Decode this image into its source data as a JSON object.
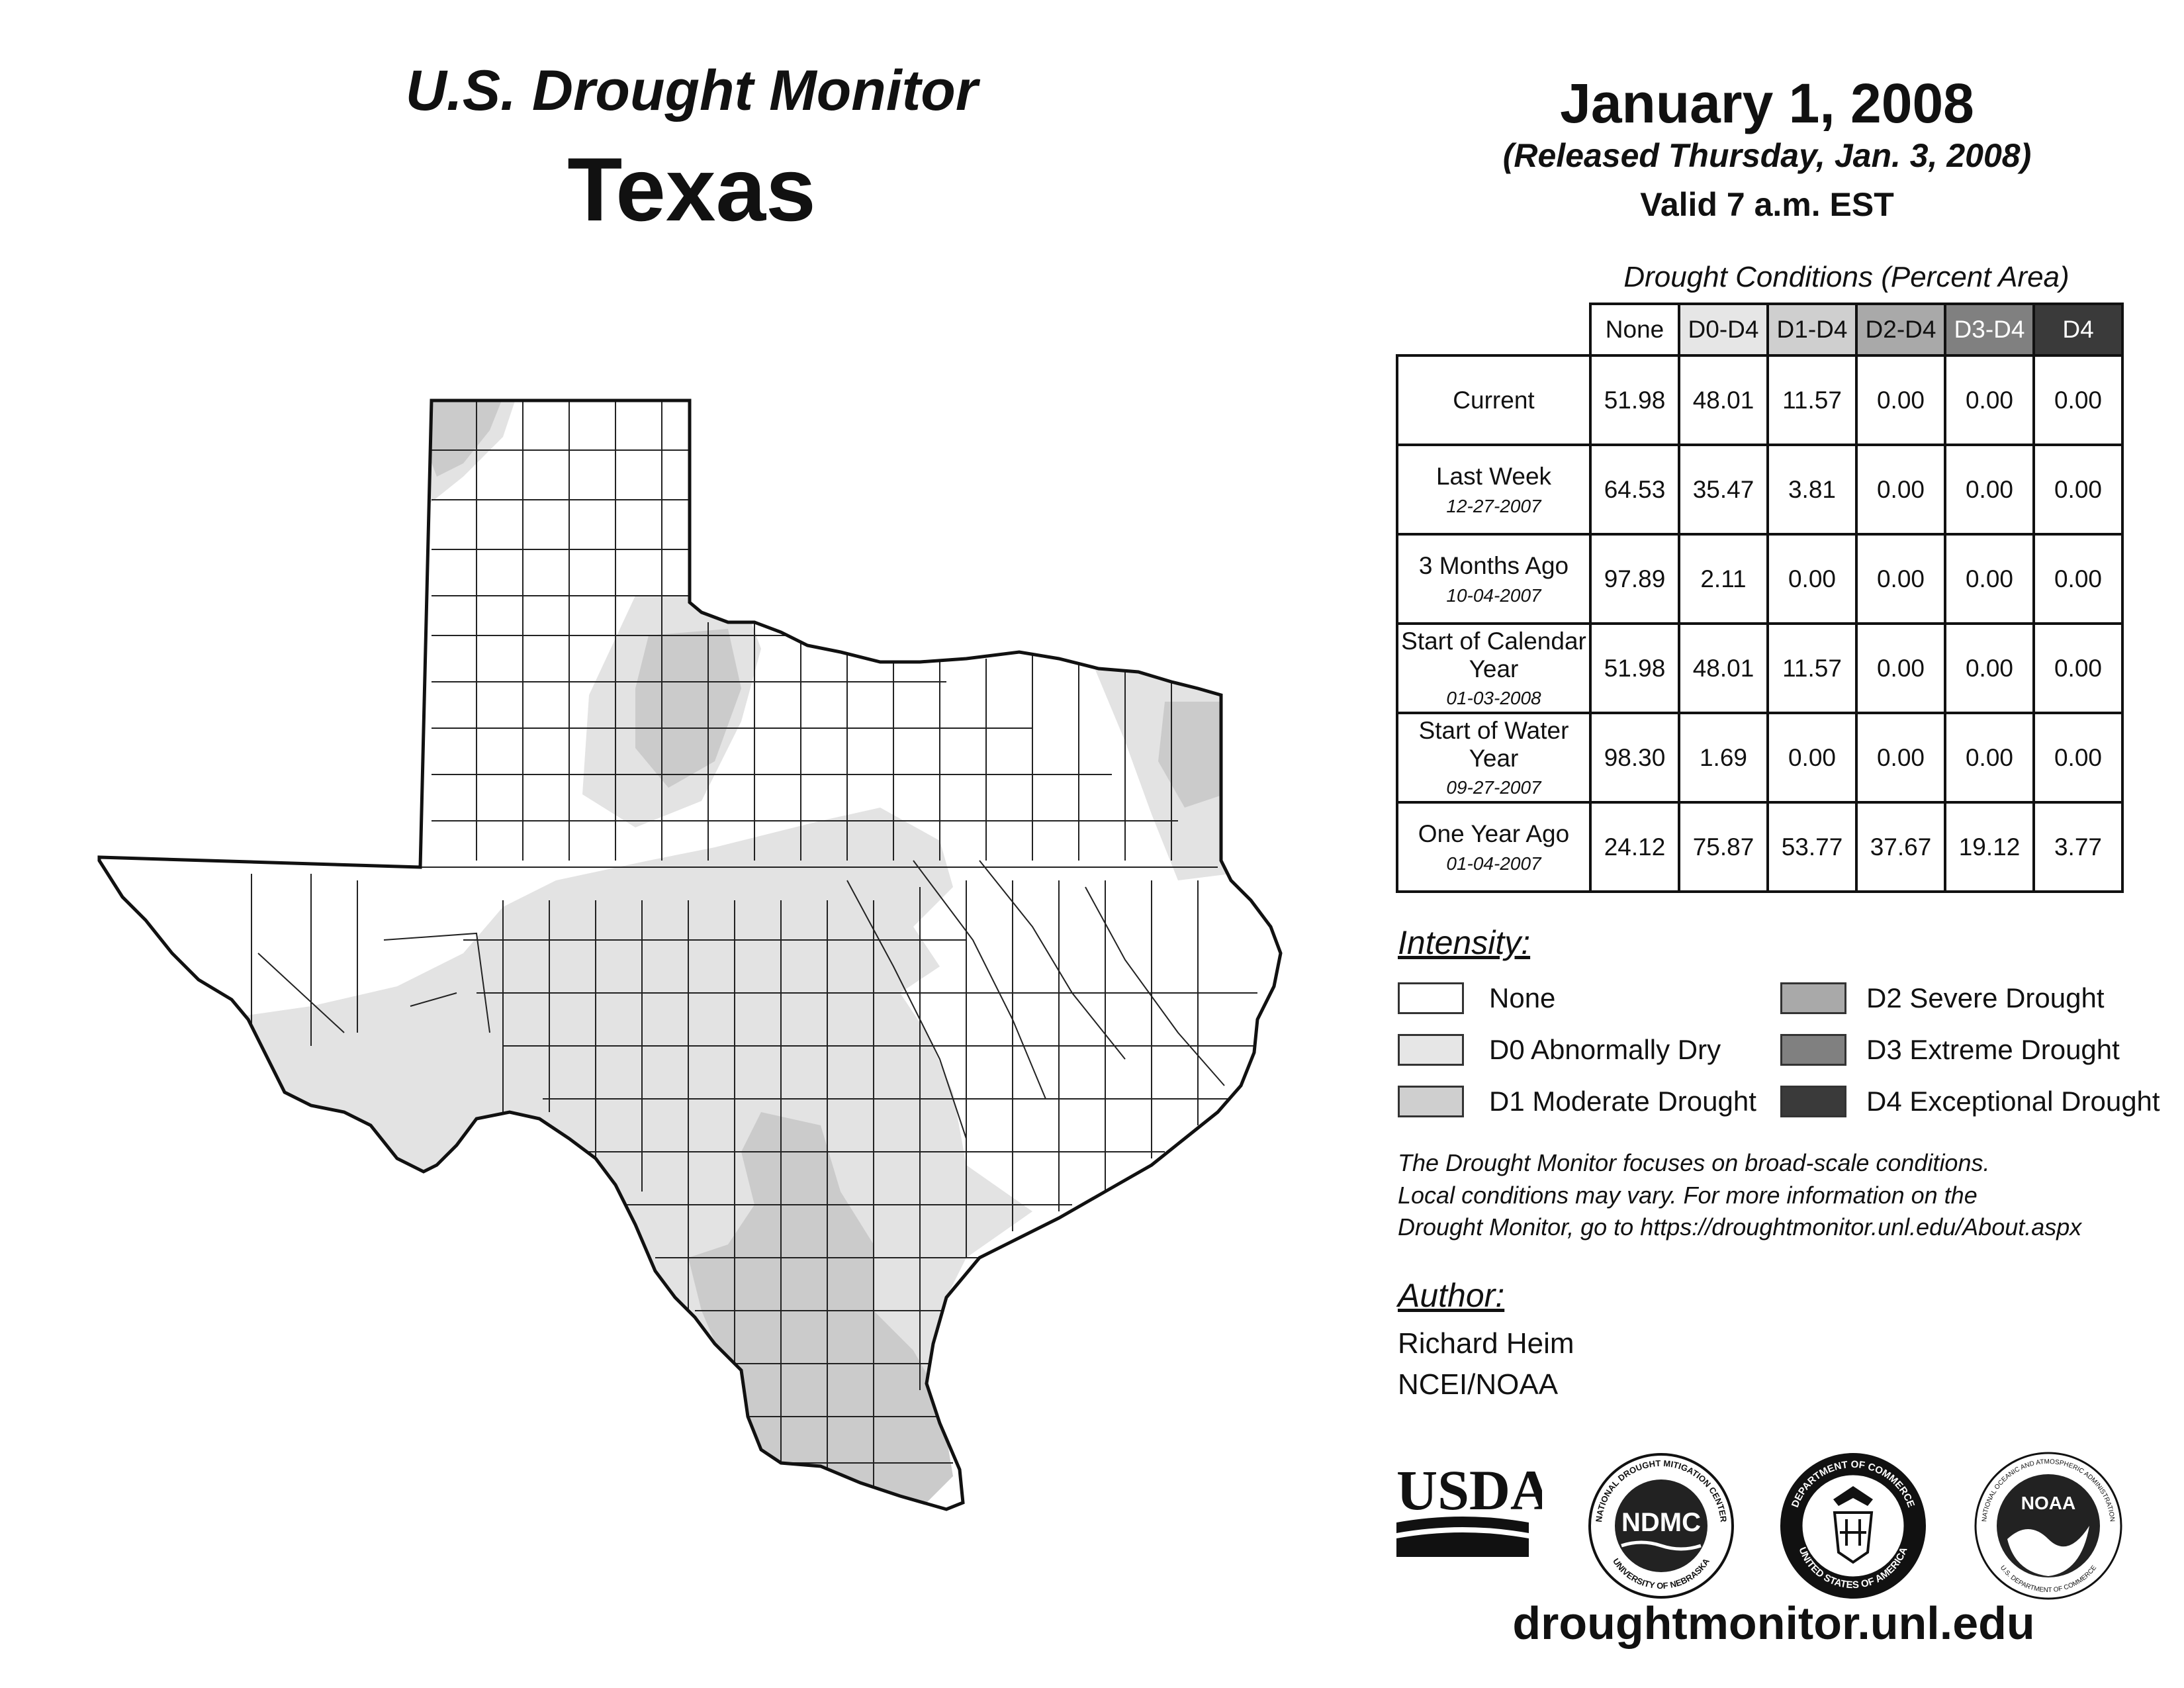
{
  "header": {
    "title": "U.S. Drought Monitor",
    "region": "Texas",
    "date": "January 1, 2008",
    "released": "(Released Thursday, Jan. 3, 2008)",
    "valid": "Valid 7 a.m. EST"
  },
  "table": {
    "caption": "Drought Conditions (Percent Area)",
    "columns": [
      "None",
      "D0-D4",
      "D1-D4",
      "D2-D4",
      "D3-D4",
      "D4"
    ],
    "column_colors": [
      "#ffffff",
      "#e6e6e6",
      "#cfcfcf",
      "#a9a9a9",
      "#808080",
      "#3a3a3a"
    ],
    "rows": [
      {
        "label": "Current",
        "sub": "",
        "values": [
          "51.98",
          "48.01",
          "11.57",
          "0.00",
          "0.00",
          "0.00"
        ]
      },
      {
        "label": "Last Week",
        "sub": "12-27-2007",
        "values": [
          "64.53",
          "35.47",
          "3.81",
          "0.00",
          "0.00",
          "0.00"
        ]
      },
      {
        "label": "3 Months Ago",
        "sub": "10-04-2007",
        "values": [
          "97.89",
          "2.11",
          "0.00",
          "0.00",
          "0.00",
          "0.00"
        ]
      },
      {
        "label": "Start of Calendar Year",
        "sub": "01-03-2008",
        "values": [
          "51.98",
          "48.01",
          "11.57",
          "0.00",
          "0.00",
          "0.00"
        ]
      },
      {
        "label": "Start of Water Year",
        "sub": "09-27-2007",
        "values": [
          "98.30",
          "1.69",
          "0.00",
          "0.00",
          "0.00",
          "0.00"
        ]
      },
      {
        "label": "One Year Ago",
        "sub": "01-04-2007",
        "values": [
          "24.12",
          "75.87",
          "53.77",
          "37.67",
          "19.12",
          "3.77"
        ]
      }
    ]
  },
  "legend": {
    "title": "Intensity:",
    "items": [
      {
        "label": "None",
        "color": "#ffffff"
      },
      {
        "label": "D0 Abnormally Dry",
        "color": "#e6e6e6"
      },
      {
        "label": "D1 Moderate Drought",
        "color": "#cfcfcf"
      },
      {
        "label": "D2 Severe Drought",
        "color": "#a9a9a9"
      },
      {
        "label": "D3 Extreme Drought",
        "color": "#808080"
      },
      {
        "label": "D4 Exceptional Drought",
        "color": "#3a3a3a"
      }
    ]
  },
  "note": {
    "line1": "The Drought Monitor focuses on broad-scale conditions.",
    "line2": "Local conditions may vary. For more information on the",
    "line3": "Drought Monitor, go to https://droughtmonitor.unl.edu/About.aspx"
  },
  "author": {
    "title": "Author:",
    "name": "Richard Heim",
    "org": "NCEI/NOAA"
  },
  "logos": {
    "usda": "USDA",
    "ndmc": "NDMC",
    "ndmc_ring_top": "NATIONAL DROUGHT MITIGATION CENTER",
    "ndmc_ring_bottom": "UNIVERSITY OF NEBRASKA",
    "doc_ring_top": "DEPARTMENT OF COMMERCE",
    "doc_ring_bottom": "UNITED STATES OF AMERICA",
    "noaa": "NOAA",
    "noaa_ring_top": "NATIONAL OCEANIC AND ATMOSPHERIC ADMINISTRATION",
    "noaa_ring_bottom": "U.S. DEPARTMENT OF COMMERCE"
  },
  "footer": {
    "url": "droughtmonitor.unl.edu"
  },
  "map": {
    "region": "Texas",
    "categories_present": [
      "D0 Abnormally Dry",
      "D1 Moderate Drought"
    ]
  }
}
